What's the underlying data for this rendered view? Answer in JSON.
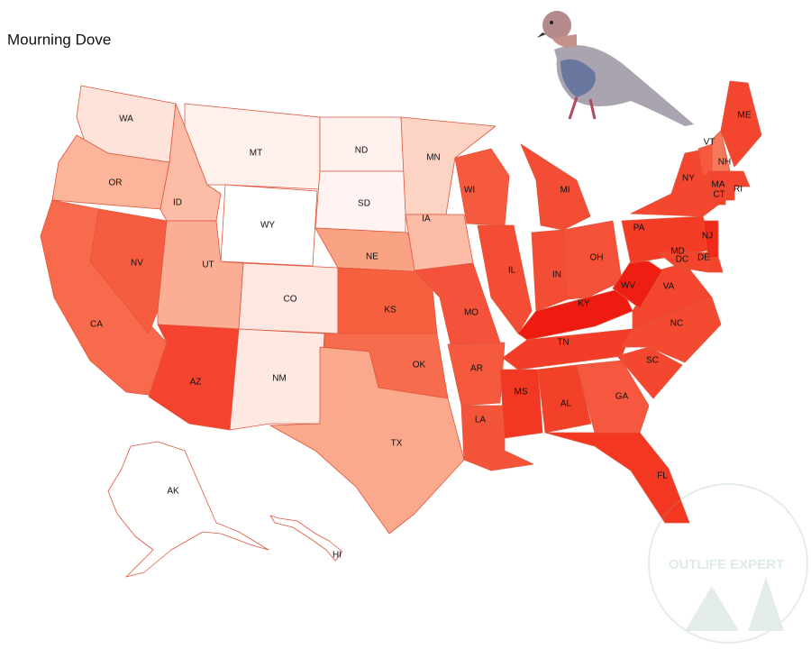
{
  "title": "Mourning Dove",
  "watermark": "OUTLIFE EXPERT",
  "states": [
    {
      "label": "WA",
      "color": "#fde3da"
    },
    {
      "label": "OR",
      "color": "#fcb49b"
    },
    {
      "label": "CA",
      "color": "#f86a4c"
    },
    {
      "label": "NV",
      "color": "#f65c3f"
    },
    {
      "label": "ID",
      "color": "#fcbca5"
    },
    {
      "label": "MT",
      "color": "#fff0ec"
    },
    {
      "label": "WY",
      "color": "#ffffff"
    },
    {
      "label": "UT",
      "color": "#fbae93"
    },
    {
      "label": "CO",
      "color": "#fee7e0"
    },
    {
      "label": "AZ",
      "color": "#f4432e"
    },
    {
      "label": "NM",
      "color": "#fee9e2"
    },
    {
      "label": "ND",
      "color": "#fff1ee"
    },
    {
      "label": "SD",
      "color": "#fff4f1"
    },
    {
      "label": "NE",
      "color": "#faa284"
    },
    {
      "label": "KS",
      "color": "#f6603f"
    },
    {
      "label": "OK",
      "color": "#f66c4c"
    },
    {
      "label": "TX",
      "color": "#fba98c"
    },
    {
      "label": "MN",
      "color": "#fdd3c4"
    },
    {
      "label": "IA",
      "color": "#fcbca6"
    },
    {
      "label": "MO",
      "color": "#f4523a"
    },
    {
      "label": "AR",
      "color": "#f55a3f"
    },
    {
      "label": "LA",
      "color": "#f4553a"
    },
    {
      "label": "WI",
      "color": "#f55a3f"
    },
    {
      "label": "IL",
      "color": "#f44d35"
    },
    {
      "label": "MI",
      "color": "#f44d35"
    },
    {
      "label": "IN",
      "color": "#f44d35"
    },
    {
      "label": "OH",
      "color": "#f55138"
    },
    {
      "label": "KY",
      "color": "#ee1c10"
    },
    {
      "label": "TN",
      "color": "#f33d28"
    },
    {
      "label": "MS",
      "color": "#f23723"
    },
    {
      "label": "AL",
      "color": "#f34029"
    },
    {
      "label": "GA",
      "color": "#f5583e"
    },
    {
      "label": "FL",
      "color": "#f43720"
    },
    {
      "label": "SC",
      "color": "#f4472f"
    },
    {
      "label": "NC",
      "color": "#f44a32"
    },
    {
      "label": "VA",
      "color": "#f4452e"
    },
    {
      "label": "WV",
      "color": "#ee1f12"
    },
    {
      "label": "PA",
      "color": "#f33c26"
    },
    {
      "label": "NY",
      "color": "#f4472f"
    },
    {
      "label": "NJ",
      "color": "#f02a18"
    },
    {
      "label": "DE",
      "color": "#f3452e"
    },
    {
      "label": "MD",
      "color": "#f3452e"
    },
    {
      "label": "DC",
      "color": "#f3452e"
    },
    {
      "label": "VT",
      "color": "#f55a3f"
    },
    {
      "label": "NH",
      "color": "#f7775a"
    },
    {
      "label": "ME",
      "color": "#f4452e"
    },
    {
      "label": "MA",
      "color": "#f4452e"
    },
    {
      "label": "CT",
      "color": "#f3452e"
    },
    {
      "label": "RI",
      "color": "#f3452e"
    },
    {
      "label": "AK",
      "color": "#ffffff"
    },
    {
      "label": "HI",
      "color": "#ffffff"
    }
  ]
}
